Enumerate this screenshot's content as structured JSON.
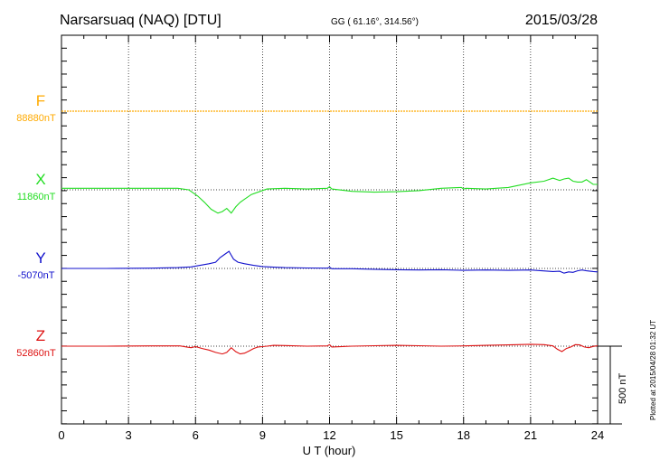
{
  "header": {
    "station": "Narsarsuaq (NAQ)  [DTU]",
    "coords": "GG ( 61.16°, 314.56°)",
    "date": "2015/03/28"
  },
  "plotted_note": "Plotted at 2015/04/28 01:32 UT",
  "scale_label": "500 nT",
  "chart_data": {
    "type": "line",
    "title": "Narsarsuaq (NAQ)  [DTU]",
    "xlabel": "U T (hour)",
    "ylabel": "",
    "xlim": [
      0,
      24
    ],
    "xticks": [
      "0",
      "3",
      "6",
      "9",
      "12",
      "15",
      "18",
      "21",
      "24"
    ],
    "grid": true,
    "scale_bar_nT": 500,
    "series": [
      {
        "name": "F",
        "baseline_label": "88880nT",
        "color": "#ffaa00",
        "x": [
          0,
          24
        ],
        "y": [
          0,
          0
        ]
      },
      {
        "name": "X",
        "baseline_label": "11860nT",
        "color": "#22dd22",
        "x": [
          0,
          2,
          4,
          5.2,
          5.7,
          6.1,
          6.4,
          6.7,
          7.0,
          7.2,
          7.4,
          7.6,
          7.8,
          8.0,
          8.2,
          8.5,
          8.9,
          9.2,
          10,
          11,
          11.9,
          12,
          12.1,
          13,
          14,
          15,
          16,
          17,
          17.9,
          18,
          18.1,
          19,
          20,
          21,
          21.6,
          22,
          22.3,
          22.5,
          22.7,
          22.9,
          23.1,
          23.3,
          23.5,
          23.8,
          24
        ],
        "y": [
          10,
          10,
          10,
          10,
          0,
          -40,
          -80,
          -125,
          -150,
          -140,
          -120,
          -150,
          -110,
          -80,
          -60,
          -30,
          -10,
          5,
          10,
          5,
          10,
          20,
          5,
          -10,
          -15,
          -12,
          -5,
          10,
          15,
          5,
          10,
          5,
          15,
          45,
          55,
          75,
          60,
          70,
          75,
          55,
          50,
          50,
          65,
          35,
          35
        ]
      },
      {
        "name": "Y",
        "baseline_label": "-5070nT",
        "color": "#1111cc",
        "x": [
          0,
          2,
          4,
          5.2,
          5.8,
          6.2,
          6.6,
          6.9,
          7.1,
          7.3,
          7.5,
          7.7,
          7.9,
          8.2,
          8.6,
          9.0,
          9.5,
          10,
          11,
          11.9,
          12,
          12.1,
          13,
          14,
          15,
          16,
          17,
          18,
          19,
          20,
          21,
          21.5,
          22,
          22.3,
          22.5,
          22.7,
          22.9,
          23.1,
          23.3,
          23.5,
          23.8,
          24
        ],
        "y": [
          0,
          0,
          2,
          5,
          10,
          20,
          30,
          40,
          70,
          90,
          110,
          60,
          40,
          30,
          20,
          12,
          8,
          5,
          3,
          2,
          8,
          -2,
          -2,
          -5,
          -8,
          -10,
          -8,
          -12,
          -10,
          -12,
          -10,
          -15,
          -20,
          -18,
          -30,
          -22,
          -25,
          -15,
          -10,
          -15,
          -20,
          -22
        ]
      },
      {
        "name": "Z",
        "baseline_label": "52860nT",
        "color": "#dd1111",
        "x": [
          0,
          2,
          4,
          5.3,
          5.6,
          5.8,
          6.0,
          6.3,
          6.6,
          6.9,
          7.2,
          7.4,
          7.6,
          7.8,
          8.0,
          8.2,
          8.4,
          8.6,
          8.8,
          9.0,
          9.2,
          9.5,
          10,
          11,
          11.9,
          12,
          12.1,
          13,
          14,
          15,
          16,
          17,
          18,
          19,
          20,
          21,
          21.6,
          22,
          22.2,
          22.4,
          22.6,
          22.8,
          23.0,
          23.2,
          23.4,
          23.6,
          23.8,
          24
        ],
        "y": [
          0,
          0,
          2,
          2,
          -5,
          -10,
          -3,
          -15,
          -25,
          -40,
          -50,
          -40,
          -10,
          -35,
          -50,
          -45,
          -30,
          -15,
          -5,
          -3,
          0,
          5,
          4,
          0,
          2,
          10,
          -5,
          0,
          3,
          5,
          3,
          0,
          2,
          5,
          8,
          12,
          10,
          2,
          -20,
          -35,
          -15,
          -5,
          10,
          8,
          -5,
          -10,
          -2,
          3
        ]
      }
    ]
  }
}
